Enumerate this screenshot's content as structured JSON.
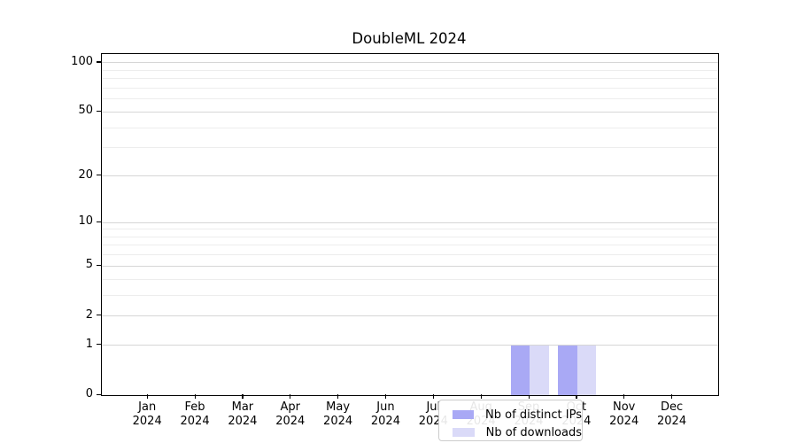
{
  "chart_data": {
    "type": "bar",
    "title": "DoubleML 2024",
    "categories": [
      {
        "month": "Jan",
        "year": "2024"
      },
      {
        "month": "Feb",
        "year": "2024"
      },
      {
        "month": "Mar",
        "year": "2024"
      },
      {
        "month": "Apr",
        "year": "2024"
      },
      {
        "month": "May",
        "year": "2024"
      },
      {
        "month": "Jun",
        "year": "2024"
      },
      {
        "month": "Jul",
        "year": "2024"
      },
      {
        "month": "Aug",
        "year": "2024"
      },
      {
        "month": "Sep",
        "year": "2024"
      },
      {
        "month": "Oct",
        "year": "2024"
      },
      {
        "month": "Nov",
        "year": "2024"
      },
      {
        "month": "Dec",
        "year": "2024"
      }
    ],
    "series": [
      {
        "name": "Nb of distinct IPs",
        "color": "#a9a9f5",
        "values": [
          0,
          0,
          0,
          0,
          0,
          0,
          0,
          0,
          1,
          1,
          0,
          0
        ]
      },
      {
        "name": "Nb of downloads",
        "color": "#dadaf8",
        "values": [
          0,
          0,
          0,
          0,
          0,
          0,
          0,
          0,
          1,
          1,
          0,
          0
        ]
      }
    ],
    "xlabel": "",
    "ylabel": "",
    "y_axis": {
      "scale": "log1p",
      "major_ticks": [
        0,
        1,
        2,
        5,
        10,
        20,
        50,
        100
      ],
      "minor_gridlines": [
        3,
        4,
        6,
        7,
        8,
        9,
        30,
        40,
        60,
        70,
        80,
        90
      ],
      "ylim": [
        0,
        113
      ]
    },
    "grid": "both",
    "legend_position": "lower center",
    "colors": {
      "major_grid": "#d6d6d6",
      "minor_grid": "#ededed",
      "spine": "#000000",
      "text": "#000000",
      "legend_border": "#cccccc",
      "background": "#ffffff"
    }
  }
}
